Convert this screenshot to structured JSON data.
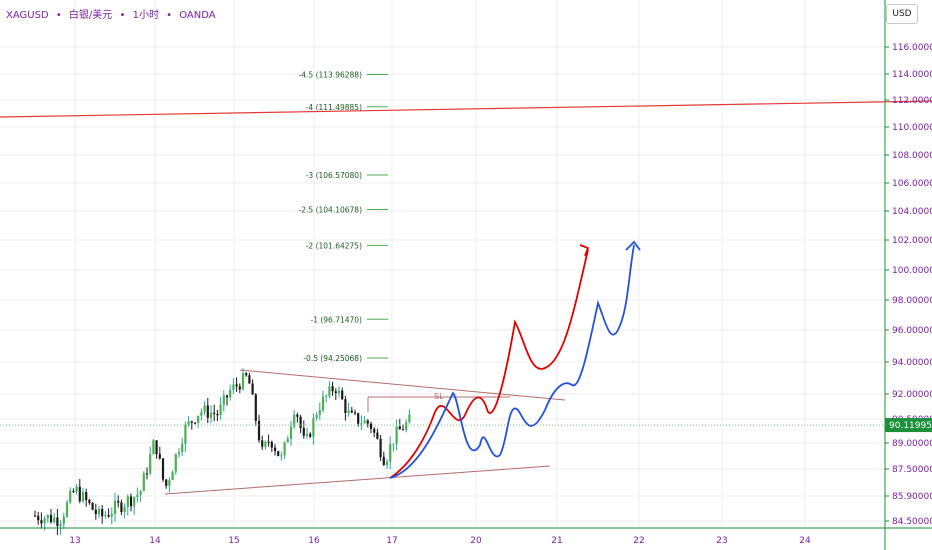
{
  "header": {
    "symbol": "XAGUSD",
    "sep": "•",
    "name": "白银/美元",
    "interval": "1小时",
    "broker": "OANDA"
  },
  "currency_button": "USD",
  "chart_data": {
    "type": "candlestick",
    "x_tick_labels": [
      "13",
      "14",
      "15",
      "16",
      "17",
      "20",
      "21",
      "22",
      "23",
      "24"
    ],
    "y_tick_labels": [
      "116.00000",
      "114.00000",
      "112.00000",
      "110.00000",
      "108.00000",
      "106.00000",
      "104.00000",
      "102.00000",
      "100.00000",
      "98.00000",
      "96.00000",
      "94.00000",
      "92.00000",
      "90.50000",
      "89.00000",
      "87.50000",
      "85.90000",
      "84.50000"
    ],
    "last_price": "90.11995",
    "colors": {
      "up": "#26a69a",
      "up_fill": "#4caf50",
      "down": "#1a1a1a",
      "fib": "#4caf50",
      "red_line": "#e53935",
      "wedge": "#b56c6c",
      "red_path": "#e00000",
      "blue_path": "#2352d9",
      "axis_text": "#7b1fa2",
      "price_tag": "#1b8f3a"
    },
    "fib_levels": [
      {
        "label": "-4.5 (113.96288)",
        "value": 113.96288
      },
      {
        "label": "-4 (111.49885)",
        "value": 111.49885
      },
      {
        "label": "-3 (106.57080)",
        "value": 106.5708
      },
      {
        "label": "-2.5 (104.10678)",
        "value": 104.10678
      },
      {
        "label": "-2 (101.64275)",
        "value": 101.64275
      },
      {
        "label": "-1 (96.71470)",
        "value": 96.7147
      },
      {
        "label": "-0.5 (94.25068)",
        "value": 94.25068
      }
    ],
    "annotation": "SL",
    "grid": true
  }
}
